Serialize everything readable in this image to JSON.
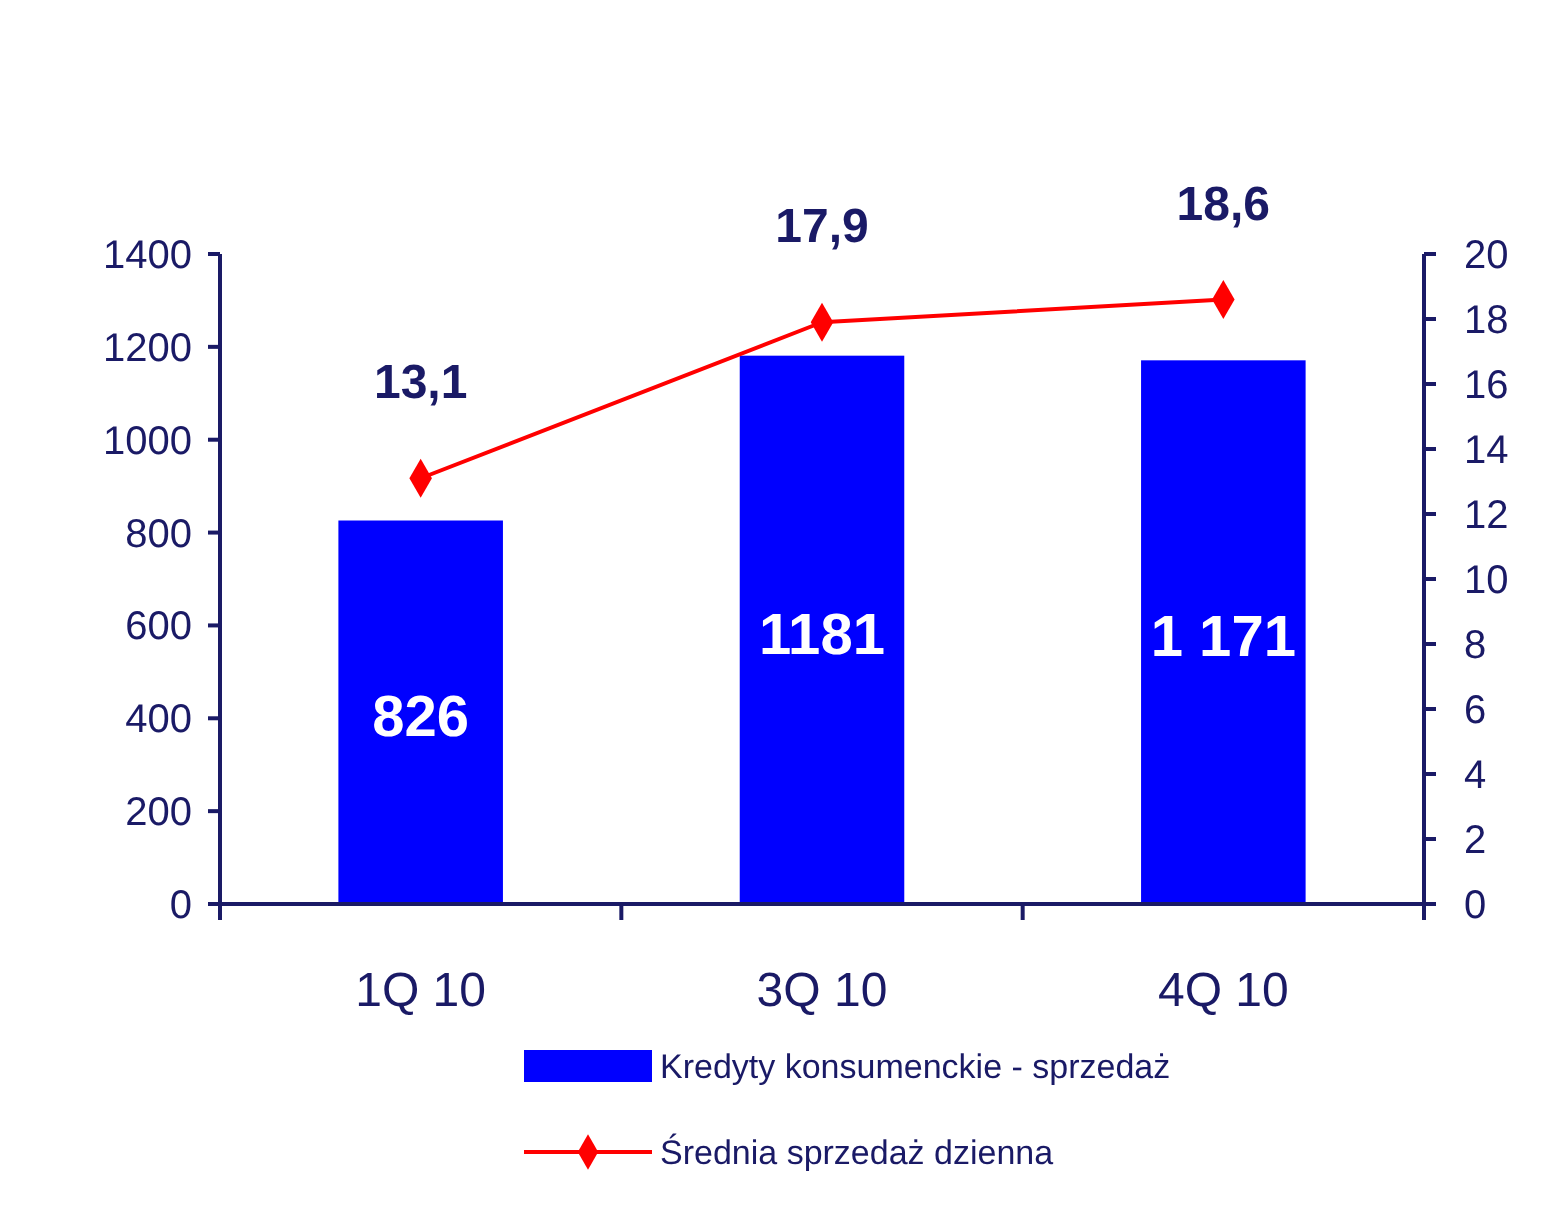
{
  "chart_data": {
    "type": "bar",
    "categories": [
      "1Q 10",
      "3Q 10",
      "4Q 10"
    ],
    "series": [
      {
        "name": "Kredyty konsumenckie - sprzedaż",
        "color": "#0000ff",
        "values": [
          826,
          1181,
          1171
        ],
        "value_labels": [
          "826",
          "1181",
          "1 171"
        ]
      },
      {
        "name": "Średnia sprzedaż dzienna",
        "type": "line",
        "axis": "y2",
        "color": "#ff0000",
        "marker": "diamond",
        "values": [
          13.1,
          17.9,
          18.6
        ],
        "value_labels": [
          "13,1",
          "17,9",
          "18,6"
        ]
      }
    ],
    "ylim": [
      0,
      1400
    ],
    "yticks": [
      0,
      200,
      400,
      600,
      800,
      1000,
      1200,
      1400
    ],
    "y2lim": [
      0,
      20
    ],
    "y2ticks": [
      0,
      2,
      4,
      6,
      8,
      10,
      12,
      14,
      16,
      18,
      20
    ],
    "grid": false,
    "legend": "bottom"
  }
}
